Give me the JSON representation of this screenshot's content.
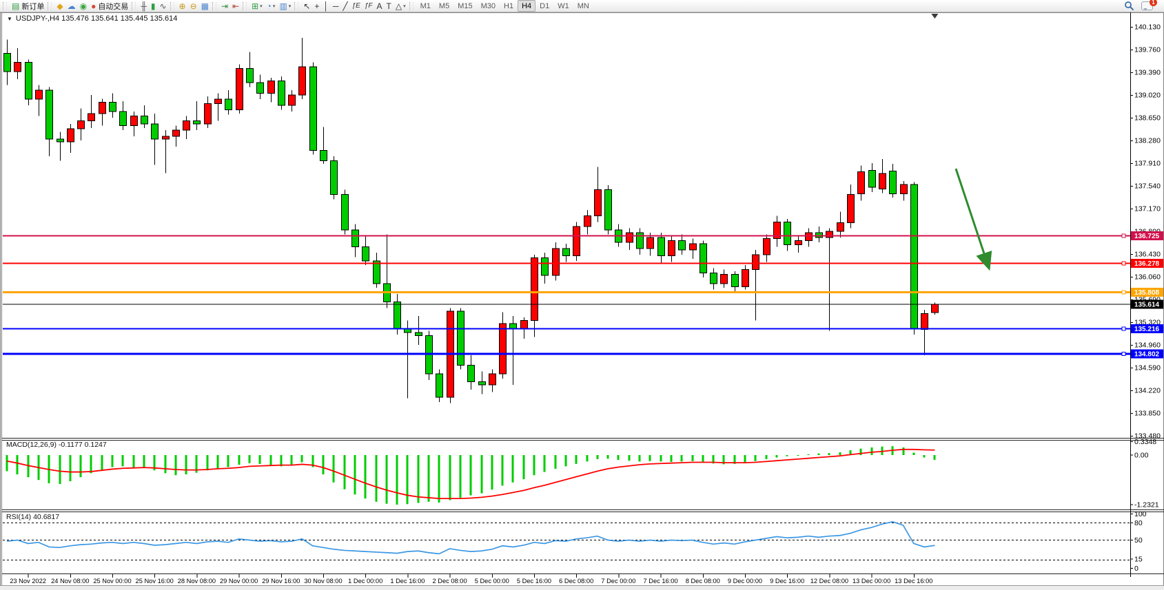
{
  "toolbar": {
    "groups": [
      {
        "items": [
          {
            "name": "new-order-button",
            "icon": "new-order-icon",
            "glyph": "▤",
            "glyph_color": "#2f9e45",
            "label": "新订单"
          }
        ]
      },
      {
        "items": [
          {
            "name": "market-button",
            "icon": "market-icon",
            "glyph": "◆",
            "glyph_color": "#e0a619"
          },
          {
            "name": "community-button",
            "icon": "community-icon",
            "glyph": "☁",
            "glyph_color": "#4a84cc"
          },
          {
            "name": "signals-button",
            "icon": "signals-icon",
            "glyph": "◉",
            "glyph_color": "#38a43c"
          },
          {
            "name": "algo-trading-button",
            "icon": "algo-trading-icon",
            "glyph": "●",
            "glyph_color": "#d2483a",
            "label": "自动交易"
          }
        ]
      },
      {
        "items": [
          {
            "name": "bar-chart-button",
            "icon": "bar-chart-icon",
            "glyph": "╫",
            "glyph_color": "#555"
          },
          {
            "name": "candlestick-chart-button",
            "icon": "candlestick-icon",
            "glyph": "▮",
            "glyph_color": "#2f9e45"
          },
          {
            "name": "line-chart-button",
            "icon": "line-chart-icon",
            "glyph": "∿",
            "glyph_color": "#555"
          }
        ]
      },
      {
        "items": [
          {
            "name": "zoom-in-button",
            "icon": "zoom-in-icon",
            "glyph": "⊕",
            "glyph_color": "#c89a18"
          },
          {
            "name": "zoom-out-button",
            "icon": "zoom-out-icon",
            "glyph": "⊖",
            "glyph_color": "#c89a18"
          },
          {
            "name": "tile-windows-button",
            "icon": "tile-windows-icon",
            "glyph": "▦",
            "glyph_color": "#4a84cc"
          }
        ]
      },
      {
        "items": [
          {
            "name": "auto-scroll-button",
            "icon": "auto-scroll-icon",
            "glyph": "⇥",
            "glyph_color": "#3c8a3c"
          },
          {
            "name": "chart-shift-button",
            "icon": "chart-shift-icon",
            "glyph": "⇤",
            "glyph_color": "#b04038"
          }
        ]
      },
      {
        "items": [
          {
            "name": "new-chart-button",
            "icon": "new-chart-icon",
            "glyph": "⊞",
            "glyph_color": "#2f9e45",
            "dropdown": true
          },
          {
            "name": "period-button",
            "icon": "clock-icon",
            "glyph": "◔",
            "glyph_color": "#4a84cc",
            "dropdown": true
          },
          {
            "name": "template-button",
            "icon": "template-icon",
            "glyph": "▥",
            "glyph_color": "#4a84cc",
            "dropdown": true
          }
        ]
      },
      {
        "items": [
          {
            "name": "cursor-button",
            "icon": "cursor-icon",
            "glyph": "↖",
            "glyph_color": "#333"
          },
          {
            "name": "crosshair-button",
            "icon": "crosshair-icon",
            "glyph": "+",
            "glyph_color": "#333"
          },
          {
            "name": "vertical-line-button",
            "icon": "vertical-line-icon",
            "glyph": "│",
            "glyph_color": "#333"
          },
          {
            "name": "horizontal-line-button",
            "icon": "horizontal-line-icon",
            "glyph": "─",
            "glyph_color": "#333"
          },
          {
            "name": "trendline-button",
            "icon": "trendline-icon",
            "glyph": "╱",
            "glyph_color": "#333"
          },
          {
            "name": "equidistant-channel-button",
            "icon": "channel-icon",
            "glyph": "ƒE",
            "glyph_color": "#333"
          },
          {
            "name": "fibonacci-button",
            "icon": "fibonacci-icon",
            "glyph": "ƒF",
            "glyph_color": "#333"
          },
          {
            "name": "text-button",
            "icon": "text-icon",
            "glyph": "A",
            "glyph_color": "#333"
          },
          {
            "name": "text-label-button",
            "icon": "text-label-icon",
            "glyph": "T",
            "glyph_color": "#333"
          },
          {
            "name": "shapes-button",
            "icon": "shapes-icon",
            "glyph": "△",
            "glyph_color": "#333",
            "dropdown": true
          }
        ]
      }
    ],
    "timeframes": [
      "M1",
      "M5",
      "M15",
      "M30",
      "H1",
      "H4",
      "D1",
      "W1",
      "MN"
    ],
    "active_timeframe": "H4",
    "notifications_badge": "1"
  },
  "header": {
    "caret": "▼",
    "title": "USDJPY-,H4  135.476 135.641 135.445 135.614"
  },
  "indicators": {
    "macd": {
      "label": "MACD(12,26,9) -0.1177 0.1247"
    },
    "rsi": {
      "label": "RSI(14) 40.6817"
    }
  },
  "chart_data": {
    "type": "candlestick",
    "symbol": "USDJPY-",
    "timeframe": "H4",
    "ohlc_readout": {
      "open": 135.476,
      "high": 135.641,
      "low": 135.445,
      "close": 135.614
    },
    "colors": {
      "bull": "#FF0000",
      "bear": "#00CD00",
      "wick": "#000000",
      "macd_hist": "#00CD00",
      "macd_signal": "#FF0000",
      "rsi_line": "#3B97E3",
      "axis_text": "#000000"
    },
    "price_axis": {
      "top": 140.13,
      "step": 0.37,
      "tick_labels": [
        "140.130",
        "139.760",
        "139.390",
        "139.020",
        "138.650",
        "138.280",
        "137.910",
        "137.540",
        "137.170",
        "136.800",
        "136.430",
        "136.060",
        "135.690",
        "135.320",
        "134.960",
        "134.590",
        "134.220",
        "133.850",
        "133.480"
      ]
    },
    "time_axis": {
      "first_label_bar": 2,
      "bars_per_label": 4,
      "labels": [
        "23 Nov 2022",
        "24 Nov 08:00",
        "25 Nov 00:00",
        "25 Nov 16:00",
        "28 Nov 08:00",
        "29 Nov 00:00",
        "29 Nov 16:00",
        "30 Nov 08:00",
        "1 Dec 00:00",
        "1 Dec 16:00",
        "2 Dec 08:00",
        "5 Dec 00:00",
        "5 Dec 16:00",
        "6 Dec 08:00",
        "7 Dec 00:00",
        "7 Dec 16:00",
        "8 Dec 08:00",
        "9 Dec 00:00",
        "9 Dec 16:00",
        "12 Dec 08:00",
        "13 Dec 00:00",
        "13 Dec 16:00"
      ]
    },
    "candles": [
      [
        139.7,
        139.92,
        139.18,
        139.4
      ],
      [
        139.4,
        139.78,
        139.28,
        139.55
      ],
      [
        139.55,
        139.6,
        138.85,
        138.95
      ],
      [
        138.95,
        139.18,
        138.68,
        139.1
      ],
      [
        139.1,
        139.15,
        138.02,
        138.3
      ],
      [
        138.3,
        138.42,
        137.95,
        138.26
      ],
      [
        138.26,
        138.55,
        138.08,
        138.47
      ],
      [
        138.47,
        138.8,
        138.28,
        138.6
      ],
      [
        138.6,
        139.02,
        138.48,
        138.72
      ],
      [
        138.72,
        138.96,
        138.52,
        138.9
      ],
      [
        138.9,
        139.05,
        138.65,
        138.75
      ],
      [
        138.75,
        138.92,
        138.45,
        138.52
      ],
      [
        138.52,
        138.75,
        138.35,
        138.68
      ],
      [
        138.68,
        138.85,
        138.48,
        138.55
      ],
      [
        138.55,
        138.72,
        137.88,
        138.3
      ],
      [
        138.3,
        138.45,
        137.75,
        138.35
      ],
      [
        138.35,
        138.52,
        138.18,
        138.45
      ],
      [
        138.45,
        138.68,
        138.3,
        138.6
      ],
      [
        138.6,
        138.92,
        138.45,
        138.55
      ],
      [
        138.55,
        139.0,
        138.48,
        138.88
      ],
      [
        138.88,
        139.05,
        138.6,
        138.95
      ],
      [
        138.95,
        139.1,
        138.7,
        138.78
      ],
      [
        138.78,
        139.52,
        138.72,
        139.45
      ],
      [
        139.45,
        139.72,
        139.15,
        139.22
      ],
      [
        139.22,
        139.35,
        138.95,
        139.05
      ],
      [
        139.05,
        139.3,
        138.9,
        139.25
      ],
      [
        139.25,
        139.32,
        138.78,
        138.85
      ],
      [
        138.85,
        139.1,
        138.75,
        139.02
      ],
      [
        139.02,
        139.95,
        138.95,
        139.48
      ],
      [
        139.48,
        139.55,
        138.05,
        138.12
      ],
      [
        138.12,
        138.5,
        137.9,
        137.95
      ],
      [
        137.95,
        138.02,
        137.32,
        137.4
      ],
      [
        137.4,
        137.48,
        136.75,
        136.82
      ],
      [
        136.82,
        136.92,
        136.38,
        136.55
      ],
      [
        136.55,
        136.72,
        136.25,
        136.32
      ],
      [
        136.32,
        136.45,
        135.88,
        135.95
      ],
      [
        135.95,
        136.75,
        135.55,
        135.65
      ],
      [
        135.65,
        135.78,
        135.12,
        135.22
      ],
      [
        135.22,
        135.35,
        134.08,
        135.15
      ],
      [
        135.15,
        135.42,
        134.95,
        135.1
      ],
      [
        135.1,
        135.18,
        134.38,
        134.48
      ],
      [
        134.48,
        134.55,
        134.02,
        134.1
      ],
      [
        134.1,
        135.55,
        134.0,
        135.5
      ],
      [
        135.5,
        135.55,
        134.55,
        134.62
      ],
      [
        134.62,
        134.78,
        134.22,
        134.35
      ],
      [
        134.35,
        134.52,
        134.15,
        134.3
      ],
      [
        134.3,
        134.55,
        134.18,
        134.48
      ],
      [
        134.48,
        135.48,
        134.4,
        135.3
      ],
      [
        135.3,
        135.42,
        134.3,
        135.22
      ],
      [
        135.22,
        135.4,
        135.05,
        135.35
      ],
      [
        135.35,
        136.42,
        135.08,
        136.37
      ],
      [
        136.37,
        136.45,
        135.95,
        136.08
      ],
      [
        136.08,
        136.62,
        136.0,
        136.52
      ],
      [
        136.52,
        136.6,
        136.3,
        136.4
      ],
      [
        136.4,
        136.95,
        136.32,
        136.88
      ],
      [
        136.88,
        137.15,
        136.75,
        137.05
      ],
      [
        137.05,
        137.85,
        136.95,
        137.48
      ],
      [
        137.48,
        137.55,
        136.75,
        136.82
      ],
      [
        136.82,
        136.92,
        136.55,
        136.62
      ],
      [
        136.62,
        136.85,
        136.5,
        136.78
      ],
      [
        136.78,
        136.85,
        136.42,
        136.52
      ],
      [
        136.52,
        136.78,
        136.4,
        136.7
      ],
      [
        136.7,
        136.78,
        136.28,
        136.4
      ],
      [
        136.4,
        136.72,
        136.3,
        136.65
      ],
      [
        136.65,
        136.75,
        136.42,
        136.5
      ],
      [
        136.5,
        136.68,
        136.35,
        136.6
      ],
      [
        136.6,
        136.65,
        136.05,
        136.12
      ],
      [
        136.12,
        136.2,
        135.85,
        135.95
      ],
      [
        135.95,
        136.18,
        135.88,
        136.1
      ],
      [
        136.1,
        136.15,
        135.82,
        135.9
      ],
      [
        135.9,
        136.25,
        135.85,
        136.18
      ],
      [
        136.18,
        136.5,
        135.35,
        136.42
      ],
      [
        136.42,
        136.75,
        136.3,
        136.68
      ],
      [
        136.68,
        137.05,
        136.55,
        136.95
      ],
      [
        136.95,
        137.0,
        136.48,
        136.58
      ],
      [
        136.58,
        136.72,
        136.45,
        136.65
      ],
      [
        136.65,
        136.85,
        136.55,
        136.78
      ],
      [
        136.78,
        136.88,
        136.62,
        136.7
      ],
      [
        136.7,
        136.85,
        135.18,
        136.8
      ],
      [
        136.8,
        137.12,
        136.7,
        136.94
      ],
      [
        136.94,
        137.56,
        136.85,
        137.4
      ],
      [
        137.41,
        137.87,
        137.3,
        137.77
      ],
      [
        137.79,
        137.91,
        137.44,
        137.52
      ],
      [
        137.49,
        137.98,
        137.42,
        137.74
      ],
      [
        137.78,
        137.9,
        137.35,
        137.41
      ],
      [
        137.41,
        137.62,
        137.3,
        137.56
      ],
      [
        137.56,
        137.6,
        135.12,
        135.22
      ],
      [
        135.2,
        135.52,
        134.78,
        135.46
      ],
      [
        135.476,
        135.641,
        135.445,
        135.614
      ]
    ],
    "hlines": [
      {
        "price": 136.725,
        "label": "136.725",
        "color": "#D2114C",
        "width": 2
      },
      {
        "price": 136.278,
        "label": "136.278",
        "color": "#FF0000",
        "width": 2
      },
      {
        "price": 135.808,
        "label": "135.808",
        "color": "#FFA500",
        "width": 3
      },
      {
        "price": 135.614,
        "label": "135.614",
        "color": "#000000",
        "width": 1,
        "role": "current-price"
      },
      {
        "price": 135.216,
        "label": "135.216",
        "color": "#0000FF",
        "width": 2
      },
      {
        "price": 134.802,
        "label": "134.802",
        "color": "#0000FF",
        "width": 3
      }
    ],
    "arrow": {
      "color": "#2E8B2E",
      "from_bar": 90,
      "from_price": 137.82,
      "to_bar": 93.1,
      "to_price": 136.22,
      "width": 3
    },
    "shift_marker_bar": 88,
    "macd": {
      "params": "12,26,9",
      "value": -0.1177,
      "signal_value": 0.1247,
      "axis_labels": [
        "0.3348",
        "0.00",
        "-1.2321"
      ],
      "axis_values": [
        0.3348,
        0,
        -1.2321
      ],
      "histogram": [
        -0.4,
        -0.48,
        -0.55,
        -0.62,
        -0.7,
        -0.72,
        -0.65,
        -0.55,
        -0.45,
        -0.38,
        -0.3,
        -0.28,
        -0.32,
        -0.3,
        -0.38,
        -0.45,
        -0.5,
        -0.48,
        -0.44,
        -0.38,
        -0.33,
        -0.3,
        -0.24,
        -0.2,
        -0.22,
        -0.25,
        -0.28,
        -0.25,
        -0.18,
        -0.3,
        -0.48,
        -0.68,
        -0.85,
        -0.98,
        -1.08,
        -1.16,
        -1.21,
        -1.2321,
        -1.22,
        -1.19,
        -1.16,
        -1.18,
        -1.12,
        -1.06,
        -1.0,
        -0.95,
        -0.86,
        -0.76,
        -0.68,
        -0.6,
        -0.5,
        -0.42,
        -0.34,
        -0.28,
        -0.22,
        -0.16,
        -0.1,
        -0.09,
        -0.12,
        -0.14,
        -0.16,
        -0.15,
        -0.16,
        -0.17,
        -0.16,
        -0.15,
        -0.17,
        -0.21,
        -0.23,
        -0.22,
        -0.19,
        -0.15,
        -0.1,
        -0.06,
        -0.03,
        0.0,
        0.02,
        0.04,
        0.05,
        0.07,
        0.12,
        0.16,
        0.19,
        0.21,
        0.22,
        0.19,
        0.06,
        -0.06,
        -0.1177
      ],
      "signal": [
        -0.15,
        -0.2,
        -0.26,
        -0.31,
        -0.36,
        -0.4,
        -0.42,
        -0.42,
        -0.41,
        -0.38,
        -0.35,
        -0.33,
        -0.32,
        -0.31,
        -0.32,
        -0.34,
        -0.36,
        -0.37,
        -0.37,
        -0.36,
        -0.34,
        -0.33,
        -0.31,
        -0.28,
        -0.27,
        -0.26,
        -0.25,
        -0.25,
        -0.23,
        -0.25,
        -0.31,
        -0.4,
        -0.5,
        -0.6,
        -0.7,
        -0.79,
        -0.87,
        -0.94,
        -1.0,
        -1.04,
        -1.06,
        -1.08,
        -1.08,
        -1.08,
        -1.07,
        -1.05,
        -1.02,
        -0.98,
        -0.93,
        -0.88,
        -0.81,
        -0.75,
        -0.68,
        -0.61,
        -0.54,
        -0.47,
        -0.4,
        -0.34,
        -0.3,
        -0.27,
        -0.24,
        -0.22,
        -0.21,
        -0.2,
        -0.19,
        -0.18,
        -0.18,
        -0.18,
        -0.19,
        -0.19,
        -0.19,
        -0.18,
        -0.16,
        -0.14,
        -0.12,
        -0.1,
        -0.08,
        -0.06,
        -0.04,
        -0.02,
        0.01,
        0.04,
        0.07,
        0.09,
        0.12,
        0.14,
        0.14,
        0.13,
        0.1247
      ]
    },
    "rsi": {
      "period": 14,
      "value": 40.6817,
      "levels": [
        80,
        50,
        15
      ],
      "axis_labels": [
        "100",
        "80",
        "50",
        "15",
        "0"
      ],
      "series": [
        48,
        50,
        44,
        46,
        38,
        37,
        40,
        42,
        43,
        45,
        46,
        44,
        46,
        44,
        41,
        42,
        44,
        46,
        44,
        47,
        48,
        46,
        52,
        50,
        48,
        49,
        47,
        48,
        52,
        40,
        37,
        34,
        32,
        31,
        30,
        29,
        28,
        27,
        30,
        31,
        28,
        26,
        35,
        32,
        30,
        31,
        34,
        40,
        38,
        41,
        46,
        44,
        49,
        48,
        52,
        54,
        57,
        50,
        48,
        50,
        48,
        50,
        48,
        50,
        49,
        50,
        46,
        43,
        45,
        43,
        47,
        50,
        53,
        56,
        54,
        55,
        57,
        55,
        57,
        58,
        62,
        68,
        72,
        78,
        82,
        76,
        44,
        38,
        40.6817
      ]
    }
  }
}
